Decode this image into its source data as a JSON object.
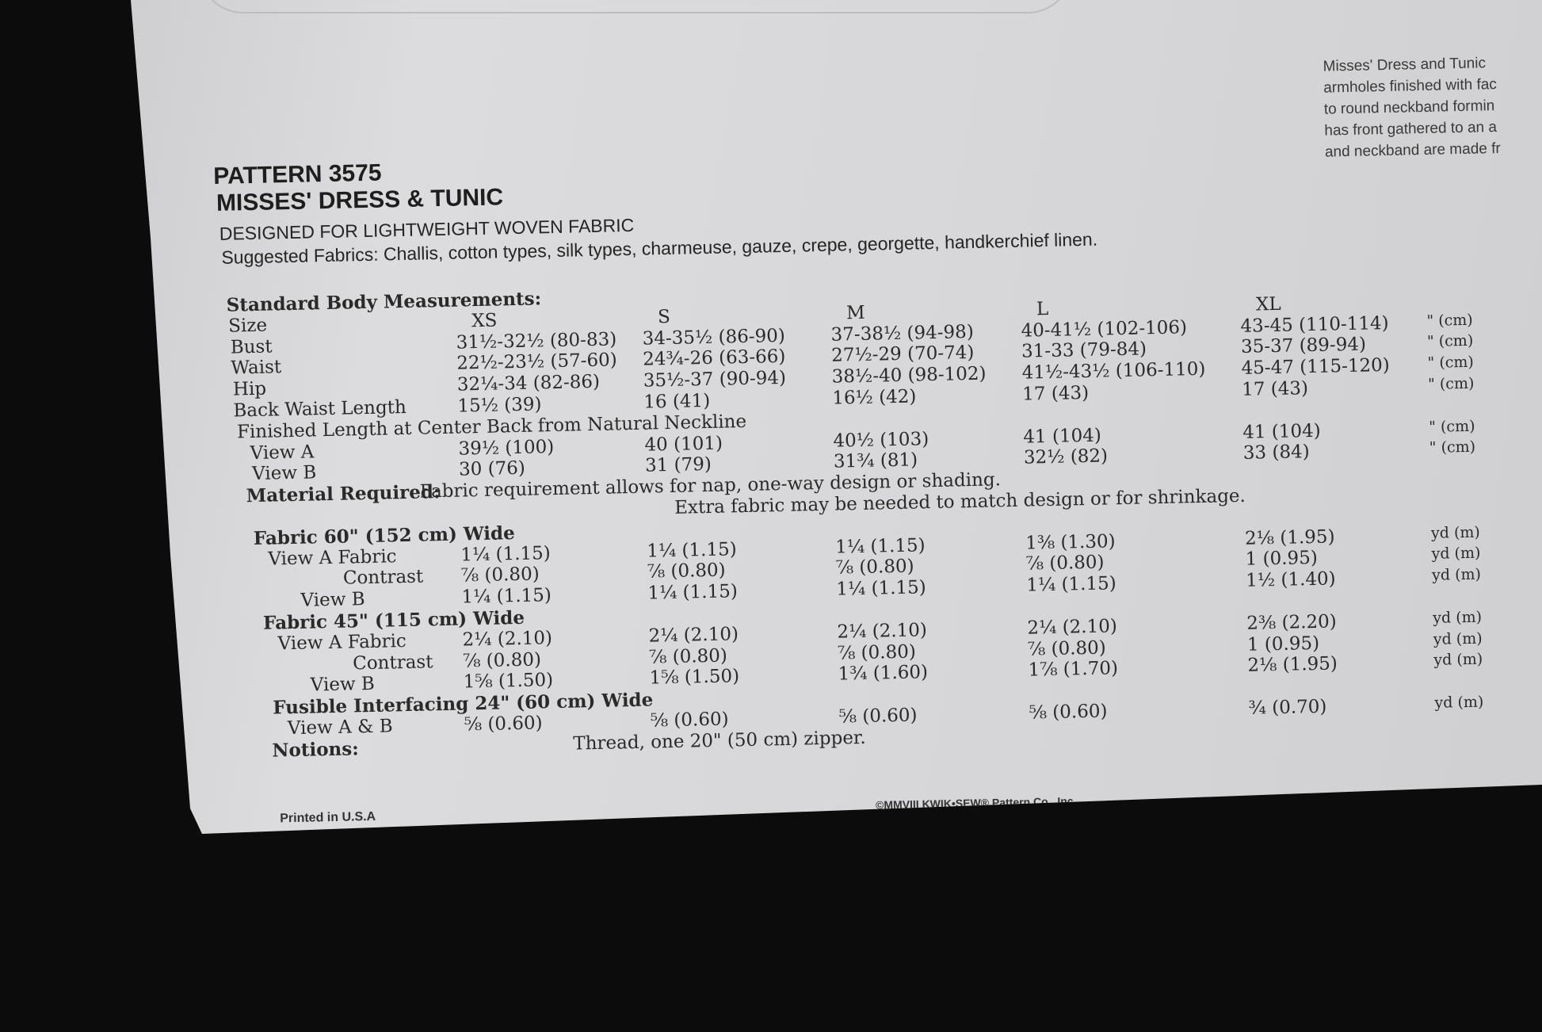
{
  "header": {
    "pattern": "PATTERN 3575",
    "title": "MISSES' DRESS & TUNIC",
    "designed_for": "DESIGNED FOR LIGHTWEIGHT WOVEN FABRIC",
    "suggested": "Suggested Fabrics: Challis, cotton types, silk types, charmeuse, gauze, crepe, georgette, handkerchief linen."
  },
  "blurb": [
    "Misses' Dress and Tunic",
    "armholes finished with fac",
    "to round neckband formin",
    "has front gathered to an a",
    "and neckband are made fr"
  ],
  "rows": [
    {
      "label": "Standard Body Measurements:",
      "indent": 0,
      "bold": true,
      "values": []
    },
    {
      "label": "Size",
      "indent": 2,
      "values": [
        "XS",
        "S",
        "M",
        "L",
        "XL"
      ],
      "unit": "",
      "center": true
    },
    {
      "label": "Bust",
      "indent": 4,
      "values": [
        "31½-32½ (80-83)",
        "34-35½ (86-90)",
        "37-38½ (94-98)",
        "40-41½ (102-106)",
        "43-45 (110-114)"
      ],
      "unit": "\" (cm)"
    },
    {
      "label": "Waist",
      "indent": 4,
      "values": [
        "22½-23½ (57-60)",
        "24¾-26 (63-66)",
        "27½-29 (70-74)",
        "31-33 (79-84)",
        "35-37 (89-94)"
      ],
      "unit": "\" (cm)"
    },
    {
      "label": "Hip",
      "indent": 6,
      "values": [
        "32¼-34 (82-86)",
        "35½-37 (90-94)",
        "38½-40 (98-102)",
        "41½-43½ (106-110)",
        "45-47 (115-120)"
      ],
      "unit": "\" (cm)"
    },
    {
      "label": "Back Waist Length",
      "indent": 6,
      "values": [
        "15½ (39)",
        "16 (41)",
        "16½ (42)",
        "17 (43)",
        "17 (43)"
      ],
      "unit": "\" (cm)"
    },
    {
      "label": "Finished Length at Center Back from Natural Neckline",
      "indent": 10,
      "values": []
    },
    {
      "label": "View A",
      "indent": 26,
      "values": [
        "39½ (100)",
        "40 (101)",
        "40½ (103)",
        "41 (104)",
        "41 (104)"
      ],
      "unit": "\" (cm)"
    },
    {
      "label": "View B",
      "indent": 28,
      "values": [
        "30 (76)",
        "31 (79)",
        "31¾ (81)",
        "32½ (82)",
        "33 (84)"
      ],
      "unit": "\" (cm)"
    },
    {
      "label": "Material Required:",
      "indent": 20,
      "bold": true,
      "values": [],
      "note": "Fabric requirement allows for nap, one-way design or shading."
    },
    {
      "label": "",
      "indent": 0,
      "values": [],
      "note": "Extra fabric may be needed to match design or for shrinkage.",
      "note_left": 560
    },
    {
      "label": "Fabric 60\" (152 cm) Wide",
      "indent": 28,
      "bold": true,
      "values": []
    },
    {
      "label": "View A Fabric",
      "indent": 46,
      "values": [
        "1¼ (1.15)",
        "1¼ (1.15)",
        "1¼ (1.15)",
        "1⅜ (1.30)",
        "2⅛ (1.95)"
      ],
      "unit": "yd (m)"
    },
    {
      "label": "Contrast",
      "indent": 140,
      "values": [
        "⅞ (0.80)",
        "⅞ (0.80)",
        "⅞ (0.80)",
        "⅞ (0.80)",
        "1 (0.95)"
      ],
      "unit": "yd (m)"
    },
    {
      "label": "View B",
      "indent": 86,
      "values": [
        "1¼ (1.15)",
        "1¼ (1.15)",
        "1¼ (1.15)",
        "1¼ (1.15)",
        "1½ (1.40)"
      ],
      "unit": "yd (m)"
    },
    {
      "label": "Fabric 45\" (115 cm) Wide",
      "indent": 38,
      "bold": true,
      "values": []
    },
    {
      "label": "View A Fabric",
      "indent": 56,
      "values": [
        "2¼ (2.10)",
        "2¼ (2.10)",
        "2¼ (2.10)",
        "2¼ (2.10)",
        "2⅜ (2.20)"
      ],
      "unit": "yd (m)"
    },
    {
      "label": "Contrast",
      "indent": 150,
      "values": [
        "⅞ (0.80)",
        "⅞ (0.80)",
        "⅞ (0.80)",
        "⅞ (0.80)",
        "1 (0.95)"
      ],
      "unit": "yd (m)"
    },
    {
      "label": "View B",
      "indent": 96,
      "values": [
        "1⅝ (1.50)",
        "1⅝ (1.50)",
        "1¾ (1.60)",
        "1⅞ (1.70)",
        "2⅛ (1.95)"
      ],
      "unit": "yd (m)"
    },
    {
      "label": "Fusible Interfacing 24\" (60 cm) Wide",
      "indent": 48,
      "bold": true,
      "values": []
    },
    {
      "label": "View A & B",
      "indent": 66,
      "values": [
        "⅝ (0.60)",
        "⅝ (0.60)",
        "⅝ (0.60)",
        "⅝ (0.60)",
        "¾ (0.70)"
      ],
      "unit": "yd (m)"
    },
    {
      "label": "Notions:",
      "indent": 46,
      "bold": true,
      "values": [],
      "note": "Thread, one 20\" (50 cm) zipper.",
      "note_left": 426
    }
  ],
  "footer": {
    "printed": "Printed in U.S.A",
    "copyright": "©MMVIII KWIK•SEW® Pattern Co., Inc."
  }
}
